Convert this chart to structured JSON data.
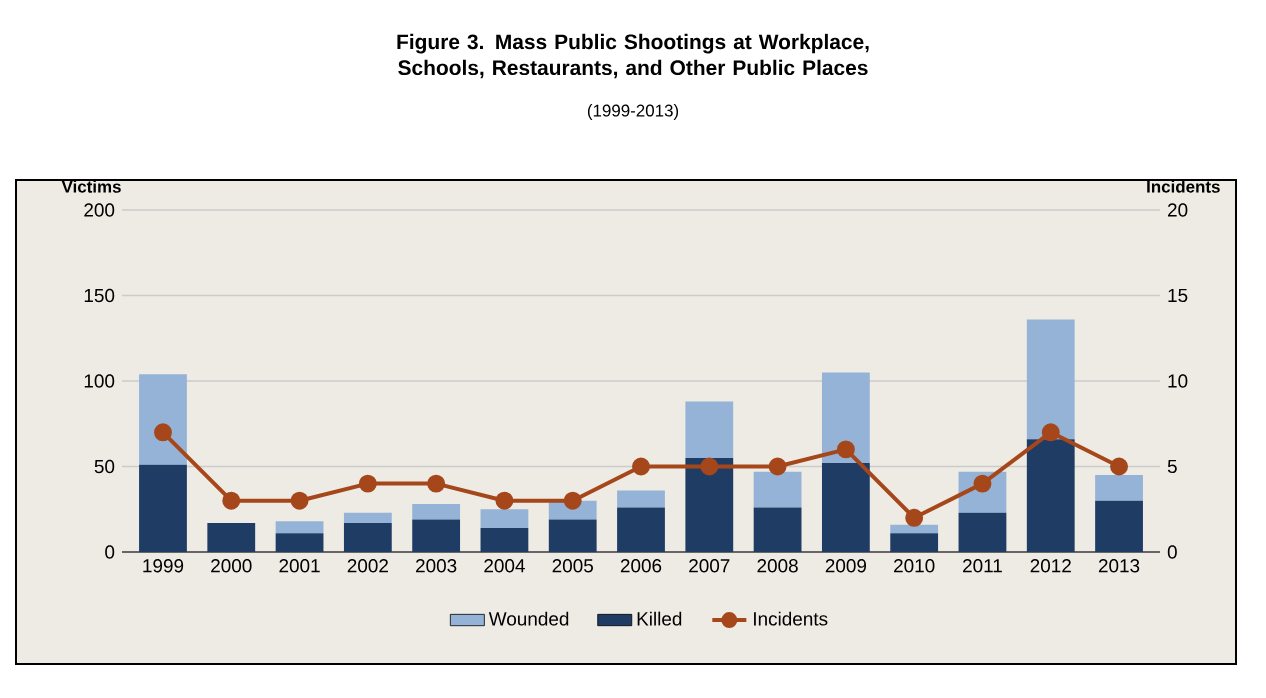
{
  "chart_data": {
    "type": "bar",
    "title": "Figure 3. Mass Public Shootings at Workplace, Schools, Restaurants, and Other Public Places",
    "subtitle": "(1999-2013)",
    "ylabel": "Victims",
    "y2label": "Incidents",
    "categories": [
      "1999",
      "2000",
      "2001",
      "2002",
      "2003",
      "2004",
      "2005",
      "2006",
      "2007",
      "2008",
      "2009",
      "2010",
      "2011",
      "2012",
      "2013"
    ],
    "series": [
      {
        "name": "Killed",
        "color": "#1f3c64",
        "values": [
          51,
          17,
          11,
          17,
          19,
          14,
          19,
          26,
          55,
          26,
          52,
          11,
          23,
          66,
          30
        ]
      },
      {
        "name": "Wounded",
        "color": "#95b3d7",
        "values": [
          53,
          0,
          7,
          6,
          9,
          11,
          11,
          10,
          33,
          21,
          53,
          5,
          24,
          70,
          15
        ]
      },
      {
        "name": "Incidents",
        "type": "line",
        "axis": "y2",
        "marker": "circle",
        "color": "#a5471b",
        "values": [
          7,
          3,
          3,
          4,
          4,
          3,
          3,
          5,
          5,
          5,
          6,
          2,
          4,
          7,
          5
        ]
      }
    ],
    "stacked": true,
    "ylim": [
      0,
      200
    ],
    "yticks": [
      0,
      50,
      100,
      150,
      200
    ],
    "y2lim": [
      0,
      20
    ],
    "y2ticks": [
      0,
      5,
      10,
      15,
      20
    ],
    "grid": "y",
    "legend": "bottom"
  }
}
